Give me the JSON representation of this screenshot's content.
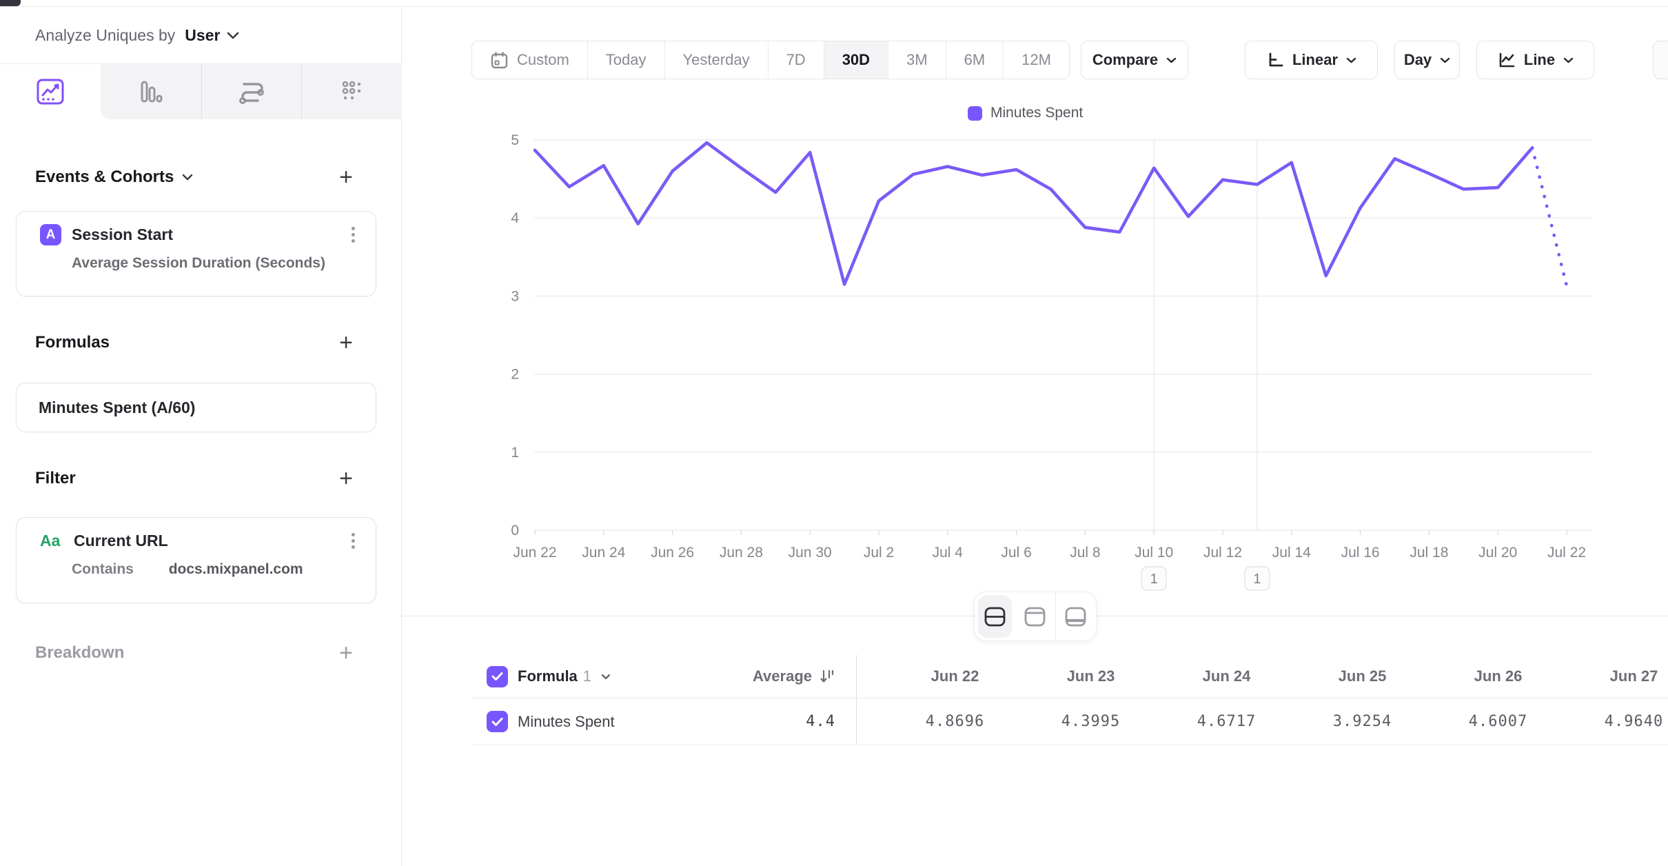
{
  "colors": {
    "accent": "#7856FF",
    "line": "#7A5AF7",
    "green_badge": "#26a165",
    "grid": "#ececee",
    "annotation_line": "#ececef",
    "text_dark": "#1d1d22",
    "text_gray": "#8a8a92"
  },
  "sidebar": {
    "analyze_label": "Analyze Uniques by",
    "analyze_value": "User",
    "tabs": [
      {
        "icon": "insights-line-chart-icon",
        "active": true
      },
      {
        "icon": "bar-chart-icon",
        "active": false
      },
      {
        "icon": "flows-icon",
        "active": false
      },
      {
        "icon": "grid-dots-icon",
        "active": false
      }
    ],
    "events": {
      "title": "Events & Cohorts",
      "card": {
        "badge": "A",
        "title": "Session Start",
        "subtitle": "Average Session Duration (Seconds)"
      }
    },
    "formulas": {
      "title": "Formulas",
      "card": {
        "title": "Minutes Spent (A/60)"
      }
    },
    "filter": {
      "title": "Filter",
      "card": {
        "badge": "Aa",
        "title": "Current URL",
        "operator": "Contains",
        "value": "docs.mixpanel.com"
      }
    },
    "breakdown": {
      "title": "Breakdown"
    }
  },
  "toolbar": {
    "ranges": [
      "Custom",
      "Today",
      "Yesterday",
      "7D",
      "30D",
      "3M",
      "6M",
      "12M"
    ],
    "active_range": "30D",
    "compare_label": "Compare",
    "scale_label": "Linear",
    "interval_label": "Day",
    "chart_type_label": "Line"
  },
  "chart_data": {
    "type": "line",
    "legend": "Minutes Spent",
    "series_color": "#7A5AF7",
    "ylim": [
      0,
      5
    ],
    "yticks": [
      0,
      1,
      2,
      3,
      4,
      5
    ],
    "grid": true,
    "legend_position": "top-center",
    "x": [
      "Jun 22",
      "Jun 23",
      "Jun 24",
      "Jun 25",
      "Jun 26",
      "Jun 27",
      "Jun 28",
      "Jun 29",
      "Jun 30",
      "Jul 1",
      "Jul 2",
      "Jul 3",
      "Jul 4",
      "Jul 5",
      "Jul 6",
      "Jul 7",
      "Jul 8",
      "Jul 9",
      "Jul 10",
      "Jul 11",
      "Jul 12",
      "Jul 13",
      "Jul 14",
      "Jul 15",
      "Jul 16",
      "Jul 17",
      "Jul 18",
      "Jul 19",
      "Jul 20",
      "Jul 21",
      "Jul 22"
    ],
    "values": [
      4.8696,
      4.3995,
      4.6717,
      3.9254,
      4.6007,
      4.964,
      4.64,
      4.33,
      4.84,
      3.15,
      4.22,
      4.56,
      4.66,
      4.55,
      4.62,
      4.37,
      3.88,
      3.82,
      4.64,
      4.02,
      4.49,
      4.43,
      4.71,
      3.26,
      4.13,
      4.76,
      4.57,
      4.37,
      4.39,
      4.9,
      3.13
    ],
    "dotted_from_index": 29,
    "xticks": [
      "Jun 22",
      "Jun 24",
      "Jun 26",
      "Jun 28",
      "Jun 30",
      "Jul 2",
      "Jul 4",
      "Jul 6",
      "Jul 8",
      "Jul 10",
      "Jul 12",
      "Jul 14",
      "Jul 16",
      "Jul 18",
      "Jul 20",
      "Jul 22"
    ],
    "annotations": [
      {
        "label": "1",
        "date": "Jul 10"
      },
      {
        "label": "1",
        "date": "Jul 13"
      }
    ]
  },
  "view_toggle": [
    {
      "icon": "split-view-icon",
      "active": true
    },
    {
      "icon": "chart-view-icon",
      "active": false
    },
    {
      "icon": "table-view-icon",
      "active": false
    }
  ],
  "table": {
    "group_label": "Formula",
    "group_index": "1",
    "avg_header": "Average",
    "columns": [
      "Jun 22",
      "Jun 23",
      "Jun 24",
      "Jun 25",
      "Jun 26",
      "Jun 27"
    ],
    "rows": [
      {
        "name": "Minutes Spent",
        "average": "4.4",
        "values": [
          "4.8696",
          "4.3995",
          "4.6717",
          "3.9254",
          "4.6007",
          "4.9640"
        ]
      }
    ]
  }
}
